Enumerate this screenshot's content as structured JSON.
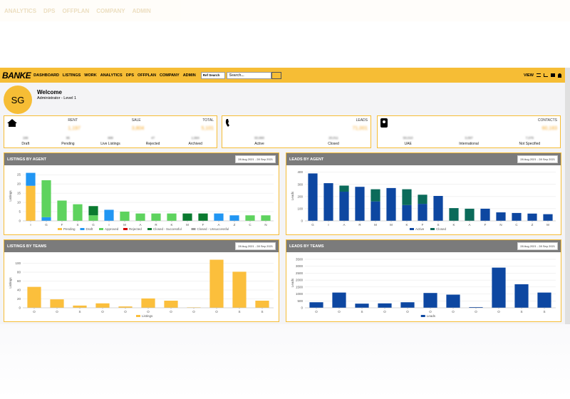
{
  "nav": {
    "logo": "BANKE",
    "items": [
      "DASHBOARD",
      "LISTINGS",
      "WORK",
      "ANALYTICS",
      "DPS",
      "OFFPLAN",
      "COMPANY",
      "ADMIN"
    ],
    "select": "Ref Search",
    "search_placeholder": "Search...",
    "user": "VIEW"
  },
  "welcome": {
    "avatar": "SG",
    "title": "Welcome",
    "subtitle": "Administrator - Level 1"
  },
  "cards": [
    {
      "headers": [
        "RENT",
        "SALE",
        "TOTAL"
      ],
      "values": [
        "1,197",
        "3,804",
        "5,101"
      ],
      "stats": [
        {
          "value": "186",
          "label": "Draft"
        },
        {
          "value": "95",
          "label": "Pending"
        },
        {
          "value": "988",
          "label": "Live Listings"
        },
        {
          "value": "47",
          "label": "Rejected"
        },
        {
          "value": "1,684",
          "label": "Archived"
        }
      ]
    },
    {
      "headers": [
        "LEADS"
      ],
      "values": [
        "71,001"
      ],
      "stats": [
        {
          "value": "50,990",
          "label": "Active"
        },
        {
          "value": "20,011",
          "label": "Closed"
        }
      ]
    },
    {
      "headers": [
        "CONTACTS"
      ],
      "values": [
        "60,183"
      ],
      "stats": [
        {
          "value": "50,010",
          "label": "UAE"
        },
        {
          "value": "3,097",
          "label": "International"
        },
        {
          "value": "7,076",
          "label": "Not Specified"
        }
      ]
    }
  ],
  "chart_data": [
    {
      "type": "bar",
      "title": "LISTINGS BY AGENT",
      "date_range": "28 Aug 2021 - 28 Sep 2021",
      "y_label": "Listings",
      "categories": [
        "I",
        "G",
        "F",
        "S",
        "G",
        "I",
        "M",
        "A",
        "R",
        "K",
        "M",
        "F",
        "A",
        "Z",
        "C",
        "N"
      ],
      "ylim": [
        0,
        27
      ],
      "yticks": [
        0,
        5,
        10,
        15,
        20,
        25
      ],
      "series": [
        {
          "name": "Pending",
          "color": "#fbbf3c",
          "values": [
            19,
            0,
            0,
            0,
            0,
            0,
            0,
            0,
            0,
            0,
            0,
            0,
            0,
            0,
            0,
            0
          ]
        },
        {
          "name": "Draft",
          "color": "#2196f3",
          "values": [
            7,
            2,
            0,
            0,
            0,
            6,
            0,
            0,
            0,
            0,
            0,
            0,
            4,
            3,
            0,
            0
          ]
        },
        {
          "name": "Approved",
          "color": "#5ed35e",
          "values": [
            0,
            20,
            11,
            9,
            3,
            0,
            5,
            4,
            4,
            4,
            0,
            0,
            0,
            0,
            3,
            3
          ]
        },
        {
          "name": "Rejected",
          "color": "#d50000",
          "values": [
            0,
            0,
            0,
            0,
            0,
            0,
            0,
            0,
            0,
            0,
            0,
            0,
            0,
            0,
            0,
            0
          ]
        },
        {
          "name": "Closed - Successful",
          "color": "#0a7a2f",
          "values": [
            0,
            0,
            0,
            0,
            5,
            0,
            0,
            0,
            0,
            0,
            4,
            4,
            0,
            0,
            0,
            0
          ]
        },
        {
          "name": "Closed - Unsuccessful",
          "color": "#9e9e9e",
          "values": [
            0,
            0,
            0,
            0,
            0,
            0,
            0,
            0,
            0,
            0,
            0,
            0,
            0,
            0,
            0,
            0
          ]
        }
      ]
    },
    {
      "type": "bar",
      "title": "LEADS BY AGENT",
      "date_range": "28 Aug 2021 - 28 Sep 2021",
      "y_label": "Leads",
      "categories": [
        "G",
        "I",
        "A",
        "R",
        "M",
        "M",
        "K",
        "F",
        "S",
        "K",
        "A",
        "F",
        "N",
        "C",
        "Z",
        "M"
      ],
      "ylim": [
        0,
        410
      ],
      "yticks": [
        0,
        100,
        200,
        300,
        400
      ],
      "series": [
        {
          "name": "Active",
          "color": "#0d47a1",
          "values": [
            390,
            310,
            240,
            280,
            160,
            270,
            130,
            140,
            205,
            0,
            0,
            100,
            70,
            65,
            60,
            55
          ]
        },
        {
          "name": "Closed",
          "color": "#0b6b5a",
          "values": [
            0,
            0,
            50,
            0,
            100,
            0,
            130,
            75,
            0,
            105,
            100,
            0,
            0,
            0,
            0,
            0
          ]
        }
      ]
    },
    {
      "type": "bar",
      "title": "LISTINGS BY TEAMS",
      "date_range": "28 Aug 2021 - 28 Sep 2021",
      "y_label": "Listings",
      "categories": [
        "O",
        "O",
        "S",
        "O",
        "O",
        "O",
        "O",
        "O",
        "O",
        "S",
        "S"
      ],
      "ylim": [
        0,
        112
      ],
      "yticks": [
        0,
        20,
        40,
        60,
        80,
        100
      ],
      "series": [
        {
          "name": "Listings",
          "color": "#fbbf3c",
          "values": [
            47,
            19,
            5,
            10,
            3,
            21,
            16,
            1,
            108,
            81,
            16
          ]
        }
      ]
    },
    {
      "type": "bar",
      "title": "LEADS BY TEAMS",
      "date_range": "28 Aug 2021 - 28 Sep 2021",
      "y_label": "Leads",
      "categories": [
        "O",
        "O",
        "S",
        "O",
        "O",
        "O",
        "O",
        "O",
        "O",
        "S",
        "S"
      ],
      "ylim": [
        0,
        3600
      ],
      "yticks": [
        0,
        500,
        1000,
        1500,
        2000,
        2500,
        3000,
        3500
      ],
      "series": [
        {
          "name": "Leads",
          "color": "#0d47a1",
          "values": [
            400,
            1100,
            300,
            320,
            400,
            1070,
            950,
            50,
            2900,
            1700,
            1100
          ]
        }
      ]
    }
  ]
}
